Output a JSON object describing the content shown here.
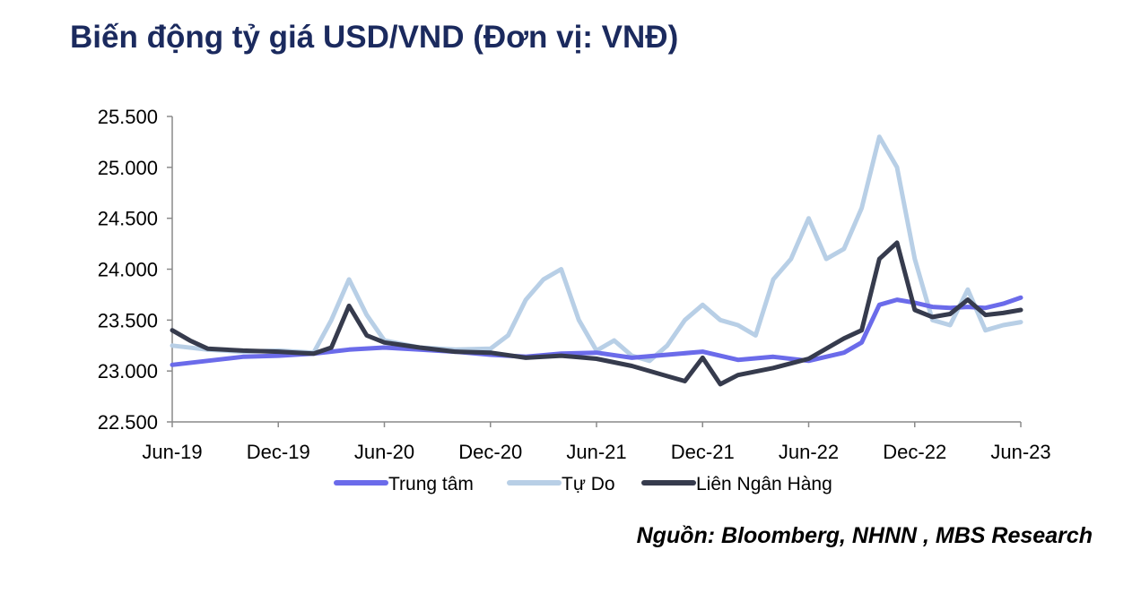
{
  "title": "Biến động tỷ giá USD/VND (Đơn vị: VNĐ)",
  "source": "Nguồn: Bloomberg, NHNN , MBS Research",
  "chart_data": {
    "type": "line",
    "x_tick_labels": [
      "Jun-19",
      "Dec-19",
      "Jun-20",
      "Dec-20",
      "Jun-21",
      "Dec-21",
      "Jun-22",
      "Dec-22",
      "Jun-23"
    ],
    "y_tick_labels": [
      "22.500",
      "23.000",
      "23.500",
      "24.000",
      "24.500",
      "25.000",
      "25.500"
    ],
    "ylim": [
      22500,
      25500
    ],
    "xlim": [
      "2019-06",
      "2023-06"
    ],
    "legend_position": "bottom",
    "grid": false,
    "series": [
      {
        "name": "Trung tâm",
        "color": "#6b6bea",
        "x": [
          "2019-06",
          "2019-08",
          "2019-10",
          "2019-12",
          "2020-02",
          "2020-04",
          "2020-06",
          "2020-08",
          "2020-10",
          "2020-12",
          "2021-02",
          "2021-04",
          "2021-06",
          "2021-08",
          "2021-10",
          "2021-12",
          "2022-02",
          "2022-04",
          "2022-06",
          "2022-08",
          "2022-09",
          "2022-10",
          "2022-11",
          "2022-12",
          "2023-01",
          "2023-02",
          "2023-03",
          "2023-04",
          "2023-05",
          "2023-06"
        ],
        "values": [
          23060,
          23100,
          23140,
          23150,
          23170,
          23210,
          23230,
          23210,
          23190,
          23160,
          23140,
          23170,
          23180,
          23130,
          23160,
          23190,
          23110,
          23140,
          23100,
          23180,
          23280,
          23650,
          23700,
          23670,
          23630,
          23620,
          23630,
          23620,
          23660,
          23720
        ]
      },
      {
        "name": "Tự Do",
        "color": "#b8cfe6",
        "x": [
          "2019-06",
          "2019-08",
          "2019-10",
          "2019-12",
          "2020-02",
          "2020-03",
          "2020-04",
          "2020-05",
          "2020-06",
          "2020-08",
          "2020-10",
          "2020-12",
          "2021-01",
          "2021-02",
          "2021-03",
          "2021-04",
          "2021-05",
          "2021-06",
          "2021-07",
          "2021-08",
          "2021-09",
          "2021-10",
          "2021-11",
          "2021-12",
          "2022-01",
          "2022-02",
          "2022-03",
          "2022-04",
          "2022-05",
          "2022-06",
          "2022-07",
          "2022-08",
          "2022-09",
          "2022-10",
          "2022-11",
          "2022-12",
          "2023-01",
          "2023-02",
          "2023-03",
          "2023-04",
          "2023-05",
          "2023-06"
        ],
        "values": [
          23250,
          23210,
          23190,
          23200,
          23180,
          23500,
          23900,
          23550,
          23300,
          23230,
          23210,
          23220,
          23350,
          23700,
          23900,
          24000,
          23500,
          23200,
          23300,
          23150,
          23100,
          23250,
          23500,
          23650,
          23500,
          23450,
          23350,
          23900,
          24100,
          24500,
          24100,
          24200,
          24600,
          25300,
          25000,
          24100,
          23500,
          23450,
          23800,
          23400,
          23450,
          23480
        ]
      },
      {
        "name": "Liên Ngân Hàng",
        "color": "#363b4d",
        "x": [
          "2019-06",
          "2019-07",
          "2019-08",
          "2019-10",
          "2019-12",
          "2020-01",
          "2020-02",
          "2020-03",
          "2020-04",
          "2020-05",
          "2020-06",
          "2020-08",
          "2020-10",
          "2020-12",
          "2021-02",
          "2021-04",
          "2021-06",
          "2021-08",
          "2021-10",
          "2021-11",
          "2021-12",
          "2022-01",
          "2022-02",
          "2022-04",
          "2022-06",
          "2022-08",
          "2022-09",
          "2022-10",
          "2022-11",
          "2022-12",
          "2023-01",
          "2023-02",
          "2023-03",
          "2023-04",
          "2023-05",
          "2023-06"
        ],
        "values": [
          23400,
          23300,
          23220,
          23200,
          23190,
          23180,
          23170,
          23230,
          23640,
          23350,
          23280,
          23230,
          23190,
          23180,
          23130,
          23150,
          23120,
          23050,
          22950,
          22900,
          23130,
          22870,
          22960,
          23030,
          23120,
          23320,
          23400,
          24100,
          24260,
          23600,
          23530,
          23560,
          23700,
          23550,
          23570,
          23600
        ]
      }
    ]
  }
}
